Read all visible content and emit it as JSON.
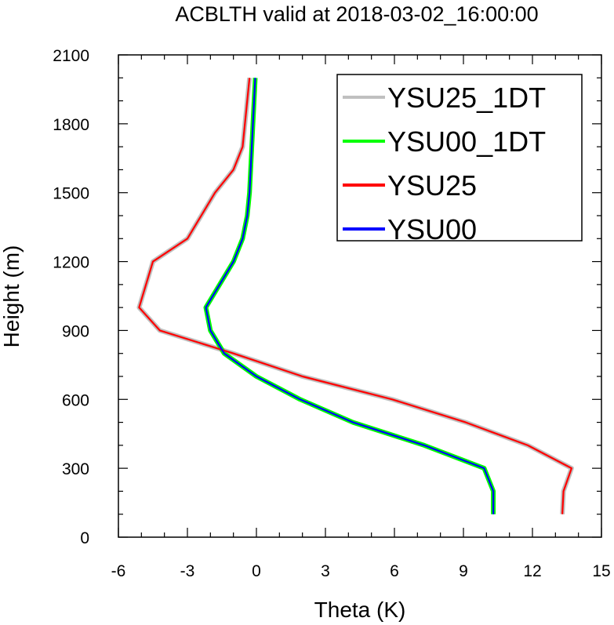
{
  "chart_data": {
    "type": "line",
    "title": "ACBLTH valid at 2018-03-02_16:00:00",
    "xlabel": "Theta (K)",
    "ylabel": "Height (m)",
    "xlim": [
      -6,
      15
    ],
    "ylim": [
      0,
      2100
    ],
    "xticks": [
      "-6",
      "-3",
      "0",
      "3",
      "6",
      "9",
      "12",
      "15"
    ],
    "yticks": [
      "0",
      "300",
      "600",
      "900",
      "1200",
      "1500",
      "1800",
      "2100"
    ],
    "legend_position": "top-right",
    "series": [
      {
        "name": "YSU25_1DT",
        "color": "#c0c0c0",
        "points": [
          [
            13.3,
            100
          ],
          [
            13.35,
            200
          ],
          [
            13.7,
            300
          ],
          [
            11.8,
            400
          ],
          [
            9.1,
            500
          ],
          [
            5.9,
            600
          ],
          [
            2.0,
            700
          ],
          [
            -1.0,
            800
          ],
          [
            -4.2,
            900
          ],
          [
            -5.1,
            1000
          ],
          [
            -4.5,
            1200
          ],
          [
            -3.0,
            1300
          ],
          [
            -1.8,
            1500
          ],
          [
            -1.0,
            1600
          ],
          [
            -0.6,
            1700
          ],
          [
            -0.3,
            2000
          ]
        ]
      },
      {
        "name": "YSU00_1DT",
        "color": "#00ff00",
        "points": [
          [
            10.3,
            100
          ],
          [
            10.3,
            200
          ],
          [
            9.9,
            300
          ],
          [
            7.3,
            400
          ],
          [
            4.2,
            500
          ],
          [
            1.9,
            600
          ],
          [
            0.0,
            700
          ],
          [
            -1.4,
            800
          ],
          [
            -2.0,
            900
          ],
          [
            -2.2,
            1000
          ],
          [
            -1.0,
            1200
          ],
          [
            -0.6,
            1300
          ],
          [
            -0.4,
            1400
          ],
          [
            -0.3,
            1500
          ],
          [
            -0.2,
            1700
          ],
          [
            -0.05,
            2000
          ]
        ]
      },
      {
        "name": "YSU25",
        "color": "#ff0000",
        "points": [
          [
            13.3,
            100
          ],
          [
            13.35,
            200
          ],
          [
            13.7,
            300
          ],
          [
            11.8,
            400
          ],
          [
            9.1,
            500
          ],
          [
            5.9,
            600
          ],
          [
            2.0,
            700
          ],
          [
            -1.0,
            800
          ],
          [
            -4.2,
            900
          ],
          [
            -5.1,
            1000
          ],
          [
            -4.5,
            1200
          ],
          [
            -3.0,
            1300
          ],
          [
            -1.8,
            1500
          ],
          [
            -1.0,
            1600
          ],
          [
            -0.6,
            1700
          ],
          [
            -0.3,
            2000
          ]
        ]
      },
      {
        "name": "YSU00",
        "color": "#0000ff",
        "points": [
          [
            10.3,
            100
          ],
          [
            10.3,
            200
          ],
          [
            9.9,
            300
          ],
          [
            7.3,
            400
          ],
          [
            4.2,
            500
          ],
          [
            1.9,
            600
          ],
          [
            0.0,
            700
          ],
          [
            -1.4,
            800
          ],
          [
            -2.0,
            900
          ],
          [
            -2.2,
            1000
          ],
          [
            -1.0,
            1200
          ],
          [
            -0.6,
            1300
          ],
          [
            -0.4,
            1400
          ],
          [
            -0.3,
            1500
          ],
          [
            -0.2,
            1700
          ],
          [
            -0.05,
            2000
          ]
        ]
      }
    ]
  }
}
